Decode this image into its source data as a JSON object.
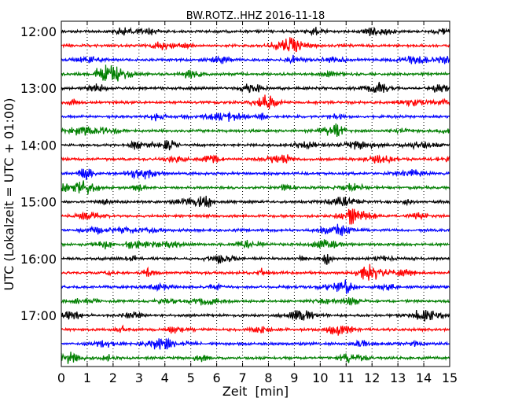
{
  "chart_data": {
    "type": "line",
    "title": "BW.ROTZ..HHZ 2016-11-18",
    "xlabel": "Zeit  [min]",
    "ylabel": "UTC (Lokalzeit = UTC + 01:00)",
    "xlim": [
      0,
      15
    ],
    "x_ticks": [
      "0",
      "1",
      "2",
      "3",
      "4",
      "5",
      "6",
      "7",
      "8",
      "9",
      "10",
      "11",
      "12",
      "13",
      "14",
      "15"
    ],
    "y_ticks": [
      "12:00",
      "13:00",
      "14:00",
      "15:00",
      "16:00",
      "17:00"
    ],
    "grid": "vertical dotted",
    "trace_interval_minutes": 15,
    "trace_count": 24,
    "trace_colors": [
      "#000000",
      "#ff0000",
      "#0000ff",
      "#007f00"
    ]
  }
}
